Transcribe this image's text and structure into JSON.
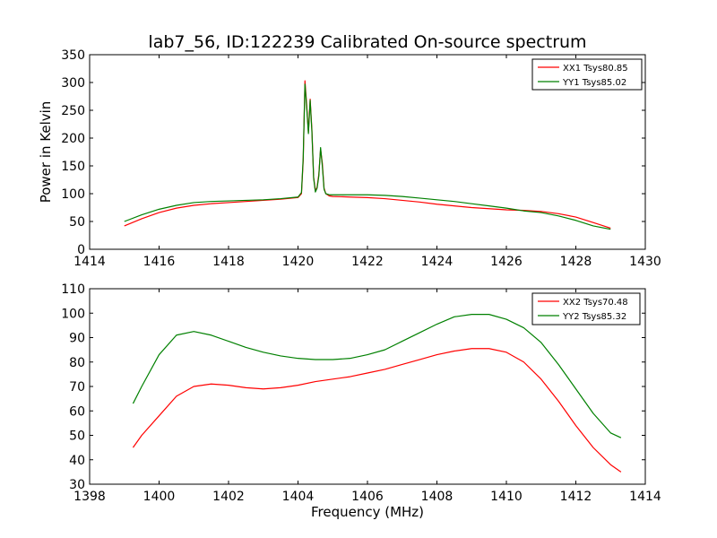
{
  "figure": {
    "title": "lab7_56, ID:122239 Calibrated On-source spectrum"
  },
  "chart_data": [
    {
      "type": "line",
      "title": "lab7_56, ID:122239 Calibrated On-source spectrum",
      "xlabel": "",
      "ylabel": "Power in Kelvin",
      "xlim": [
        1414,
        1430
      ],
      "ylim": [
        0,
        350
      ],
      "xticks": [
        "1414",
        "1416",
        "1418",
        "1420",
        "1422",
        "1424",
        "1426",
        "1428",
        "1430"
      ],
      "yticks": [
        "0",
        "50",
        "100",
        "150",
        "200",
        "250",
        "300",
        "350"
      ],
      "grid": false,
      "legend": "top-right",
      "series": [
        {
          "name": "XX1 Tsys80.85",
          "color": "#ff0000",
          "x": [
            1415.0,
            1415.5,
            1416.0,
            1416.5,
            1417.0,
            1417.5,
            1418.0,
            1418.5,
            1419.0,
            1419.5,
            1420.0,
            1420.1,
            1420.15,
            1420.2,
            1420.25,
            1420.3,
            1420.35,
            1420.4,
            1420.45,
            1420.5,
            1420.55,
            1420.6,
            1420.65,
            1420.7,
            1420.75,
            1420.8,
            1420.9,
            1421.0,
            1421.5,
            1422.0,
            1422.5,
            1423.0,
            1423.5,
            1424.0,
            1424.5,
            1425.0,
            1425.5,
            1426.0,
            1426.5,
            1427.0,
            1427.5,
            1428.0,
            1428.5,
            1429.0
          ],
          "y": [
            42,
            55,
            66,
            74,
            79,
            82,
            84,
            86,
            88,
            90,
            93,
            100,
            160,
            303,
            260,
            210,
            270,
            215,
            130,
            105,
            112,
            135,
            180,
            155,
            110,
            100,
            96,
            95,
            94,
            93,
            91,
            88,
            85,
            81,
            78,
            75,
            73,
            71,
            70,
            68,
            64,
            58,
            48,
            38
          ]
        },
        {
          "name": "YY1 Tsys85.02",
          "color": "#008000",
          "x": [
            1415.0,
            1415.5,
            1416.0,
            1416.5,
            1417.0,
            1417.5,
            1418.0,
            1418.5,
            1419.0,
            1419.5,
            1420.0,
            1420.1,
            1420.15,
            1420.2,
            1420.25,
            1420.3,
            1420.35,
            1420.4,
            1420.45,
            1420.5,
            1420.55,
            1420.6,
            1420.65,
            1420.7,
            1420.75,
            1420.8,
            1420.9,
            1421.0,
            1421.5,
            1422.0,
            1422.5,
            1423.0,
            1423.5,
            1424.0,
            1424.5,
            1425.0,
            1425.5,
            1426.0,
            1426.5,
            1427.0,
            1427.5,
            1428.0,
            1428.5,
            1429.0
          ],
          "y": [
            50,
            62,
            72,
            79,
            84,
            86,
            87,
            88,
            89,
            91,
            94,
            102,
            165,
            297,
            255,
            208,
            268,
            212,
            128,
            103,
            110,
            132,
            183,
            150,
            108,
            100,
            98,
            98,
            98,
            98,
            97,
            95,
            92,
            89,
            86,
            82,
            78,
            74,
            69,
            66,
            60,
            52,
            42,
            36
          ]
        }
      ]
    },
    {
      "type": "line",
      "title": "",
      "xlabel": "Frequency (MHz)",
      "ylabel": "",
      "xlim": [
        1398,
        1414
      ],
      "ylim": [
        30,
        110
      ],
      "xticks": [
        "1398",
        "1400",
        "1402",
        "1404",
        "1406",
        "1408",
        "1410",
        "1412",
        "1414"
      ],
      "yticks": [
        "30",
        "40",
        "50",
        "60",
        "70",
        "80",
        "90",
        "100",
        "110"
      ],
      "grid": false,
      "legend": "top-right",
      "series": [
        {
          "name": "XX2 Tsys70.48",
          "color": "#ff0000",
          "x": [
            1399.25,
            1399.5,
            1400.0,
            1400.5,
            1401.0,
            1401.5,
            1402.0,
            1402.5,
            1403.0,
            1403.5,
            1404.0,
            1404.5,
            1405.0,
            1405.5,
            1406.0,
            1406.5,
            1407.0,
            1407.5,
            1408.0,
            1408.5,
            1409.0,
            1409.5,
            1410.0,
            1410.5,
            1411.0,
            1411.5,
            1412.0,
            1412.5,
            1413.0,
            1413.3
          ],
          "y": [
            45,
            50,
            58,
            66,
            70,
            71,
            70.5,
            69.5,
            69,
            69.5,
            70.5,
            72,
            73,
            74,
            75.5,
            77,
            79,
            81,
            83,
            84.5,
            85.5,
            85.5,
            84,
            80,
            73,
            64,
            54,
            45,
            38,
            35
          ]
        },
        {
          "name": "YY2 Tsys85.32",
          "color": "#008000",
          "x": [
            1399.25,
            1399.5,
            1400.0,
            1400.5,
            1401.0,
            1401.5,
            1402.0,
            1402.5,
            1403.0,
            1403.5,
            1404.0,
            1404.5,
            1405.0,
            1405.5,
            1406.0,
            1406.5,
            1407.0,
            1407.5,
            1408.0,
            1408.5,
            1409.0,
            1409.5,
            1410.0,
            1410.5,
            1411.0,
            1411.5,
            1412.0,
            1412.5,
            1413.0,
            1413.3
          ],
          "y": [
            63,
            70,
            83,
            91,
            92.5,
            91,
            88.5,
            86,
            84,
            82.5,
            81.5,
            81,
            81,
            81.5,
            83,
            85,
            88.5,
            92,
            95.5,
            98.5,
            99.5,
            99.5,
            97.5,
            94,
            88,
            79,
            69,
            59,
            51,
            49
          ]
        }
      ]
    }
  ]
}
